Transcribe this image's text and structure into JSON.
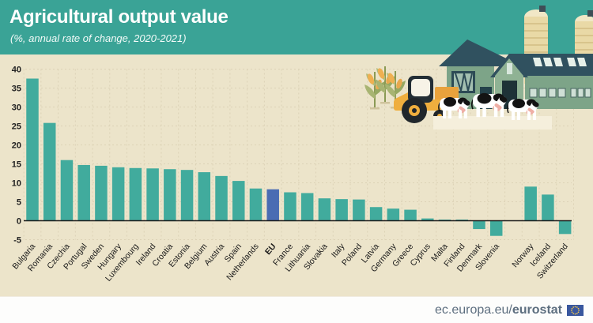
{
  "header": {
    "title": "Agricultural output value",
    "subtitle": "(%, annual rate of change, 2020-2021)"
  },
  "footer": {
    "url_prefix": "ec.europa.eu/",
    "url_bold": "eurostat"
  },
  "colors": {
    "header_teal": "#3aa396",
    "background_beige": "#ece4ca",
    "bar_teal": "#41ab9d",
    "eu_bar_blue": "#4a6cb3",
    "grid": "#dcd2b6",
    "zero_line": "#1c1c1c",
    "tick_text": "#222222",
    "label_text": "#1a1a1a",
    "footer_text": "#5d6e7f",
    "flag_blue": "#39579e",
    "flag_stars": "#f4c84b"
  },
  "chart_data": {
    "type": "bar",
    "title": "Agricultural output value",
    "subtitle": "(%, annual rate of change, 2020-2021)",
    "xlabel": "",
    "ylabel": "% annual rate of change",
    "ylim": [
      -5,
      40
    ],
    "ytick_step": 5,
    "y_axis_ticks": [
      40,
      35,
      30,
      25,
      20,
      15,
      10,
      5,
      0,
      -5
    ],
    "grid": true,
    "legend": "none",
    "highlight_category": "EU",
    "bar_color": "#41ab9d",
    "highlight_color": "#4a6cb3",
    "categories": [
      "Bulgaria",
      "Romania",
      "Czechia",
      "Portugal",
      "Sweden",
      "Hungary",
      "Luxembourg",
      "Ireland",
      "Croatia",
      "Estonia",
      "Belgium",
      "Austria",
      "Spain",
      "Netherlands",
      "EU",
      "France",
      "Lithuania",
      "Slovakia",
      "Italy",
      "Poland",
      "Latvia",
      "Germany",
      "Greece",
      "Cyprus",
      "Malta",
      "Finland",
      "Denmark",
      "Slovenia",
      "",
      "Norway",
      "Iceland",
      "Switzerland"
    ],
    "values": [
      37.5,
      25.8,
      16.0,
      14.7,
      14.5,
      14.1,
      13.9,
      13.8,
      13.6,
      13.4,
      12.8,
      11.8,
      10.5,
      8.5,
      8.3,
      7.5,
      7.3,
      5.9,
      5.7,
      5.6,
      3.6,
      3.2,
      2.9,
      0.6,
      0.3,
      0.3,
      -2.2,
      -4.0,
      null,
      9.0,
      6.9,
      -3.5
    ]
  }
}
